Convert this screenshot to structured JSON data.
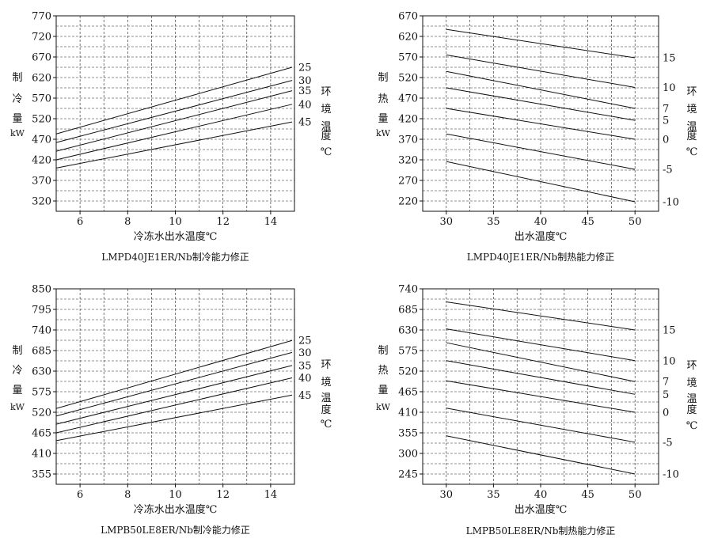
{
  "colors": {
    "ink": "#111111",
    "grid": "#222222",
    "background": "#ffffff"
  },
  "chart_data": [
    {
      "type": "line",
      "title": "LMPD40JE1ER/Nb制冷能力修正",
      "xlabel": "冷冻水出水温度℃",
      "ylabel_chars": [
        "制",
        "冷",
        "量",
        "kW"
      ],
      "right_label_chars": [
        "环",
        "境",
        "温",
        "度",
        "℃"
      ],
      "xlim": [
        5,
        15
      ],
      "ylim": [
        295,
        770
      ],
      "x_ticks": [
        6,
        8,
        10,
        12,
        14
      ],
      "y_ticks": [
        320,
        370,
        420,
        470,
        520,
        570,
        620,
        670,
        720,
        770
      ],
      "grid": true,
      "series": [
        {
          "name": "25",
          "x": [
            5,
            14.9
          ],
          "values": [
            483,
            645
          ]
        },
        {
          "name": "30",
          "x": [
            5,
            14.9
          ],
          "values": [
            462,
            613
          ]
        },
        {
          "name": "35",
          "x": [
            5,
            14.9
          ],
          "values": [
            441,
            588
          ]
        },
        {
          "name": "40",
          "x": [
            5,
            14.9
          ],
          "values": [
            420,
            555
          ]
        },
        {
          "name": "45",
          "x": [
            5,
            14.9
          ],
          "values": [
            400,
            512
          ]
        }
      ]
    },
    {
      "type": "line",
      "title": "LMPD40JE1ER/Nb制热能力修正",
      "xlabel": "出水温度℃",
      "ylabel_chars": [
        "制",
        "热",
        "量",
        "kW"
      ],
      "right_label_chars": [
        "环",
        "境",
        "温",
        "度",
        "℃"
      ],
      "xlim": [
        27.5,
        52.5
      ],
      "ylim": [
        195,
        670
      ],
      "x_ticks": [
        30,
        35,
        40,
        45,
        50
      ],
      "y_ticks": [
        220,
        270,
        320,
        370,
        420,
        470,
        520,
        570,
        620,
        670
      ],
      "grid": true,
      "series": [
        {
          "name": "15",
          "x": [
            30,
            50
          ],
          "values": [
            637,
            568
          ]
        },
        {
          "name": "10",
          "x": [
            30,
            50
          ],
          "values": [
            575,
            496
          ]
        },
        {
          "name": "7",
          "x": [
            30,
            50
          ],
          "values": [
            535,
            445
          ]
        },
        {
          "name": "5",
          "x": [
            30,
            50
          ],
          "values": [
            495,
            416
          ]
        },
        {
          "name": "0",
          "x": [
            30,
            50
          ],
          "values": [
            445,
            370
          ]
        },
        {
          "name": "-5",
          "x": [
            30,
            50
          ],
          "values": [
            383,
            297
          ]
        },
        {
          "name": "-10",
          "x": [
            30,
            50
          ],
          "values": [
            316,
            218
          ]
        }
      ]
    },
    {
      "type": "line",
      "title": "LMPB50LE8ER/Nb制冷能力修正",
      "xlabel": "冷冻水出水温度℃",
      "ylabel_chars": [
        "制",
        "冷",
        "量",
        "kW"
      ],
      "right_label_chars": [
        "环",
        "境",
        "温",
        "度",
        "℃"
      ],
      "xlim": [
        5,
        15
      ],
      "ylim": [
        327.5,
        850
      ],
      "x_ticks": [
        6,
        8,
        10,
        12,
        14
      ],
      "y_ticks": [
        355,
        410,
        465,
        520,
        575,
        630,
        685,
        740,
        795,
        850
      ],
      "grid": true,
      "series": [
        {
          "name": "25",
          "x": [
            5,
            14.9
          ],
          "values": [
            530,
            712
          ]
        },
        {
          "name": "30",
          "x": [
            5,
            14.9
          ],
          "values": [
            510,
            680
          ]
        },
        {
          "name": "35",
          "x": [
            5,
            14.9
          ],
          "values": [
            488,
            645
          ]
        },
        {
          "name": "40",
          "x": [
            5,
            14.9
          ],
          "values": [
            465,
            612
          ]
        },
        {
          "name": "45",
          "x": [
            5,
            14.9
          ],
          "values": [
            444,
            566
          ]
        }
      ]
    },
    {
      "type": "line",
      "title": "LMPB50LE8ER/Nb制热能力修正",
      "xlabel": "出水温度℃",
      "ylabel_chars": [
        "制",
        "热",
        "量",
        "kW"
      ],
      "right_label_chars": [
        "环",
        "境",
        "温",
        "度",
        "℃"
      ],
      "xlim": [
        27.5,
        52.5
      ],
      "ylim": [
        217.5,
        740
      ],
      "x_ticks": [
        30,
        35,
        40,
        45,
        50
      ],
      "y_ticks": [
        245,
        300,
        355,
        410,
        465,
        520,
        575,
        630,
        685,
        740
      ],
      "grid": true,
      "series": [
        {
          "name": "15",
          "x": [
            30,
            50
          ],
          "values": [
            705,
            630
          ]
        },
        {
          "name": "10",
          "x": [
            30,
            50
          ],
          "values": [
            633,
            548
          ]
        },
        {
          "name": "7",
          "x": [
            30,
            50
          ],
          "values": [
            596,
            492
          ]
        },
        {
          "name": "5",
          "x": [
            30,
            50
          ],
          "values": [
            548,
            458
          ]
        },
        {
          "name": "0",
          "x": [
            30,
            50
          ],
          "values": [
            494,
            410
          ]
        },
        {
          "name": "-5",
          "x": [
            30,
            50
          ],
          "values": [
            421,
            330
          ]
        },
        {
          "name": "-10",
          "x": [
            30,
            50
          ],
          "values": [
            347,
            245
          ]
        }
      ]
    }
  ]
}
